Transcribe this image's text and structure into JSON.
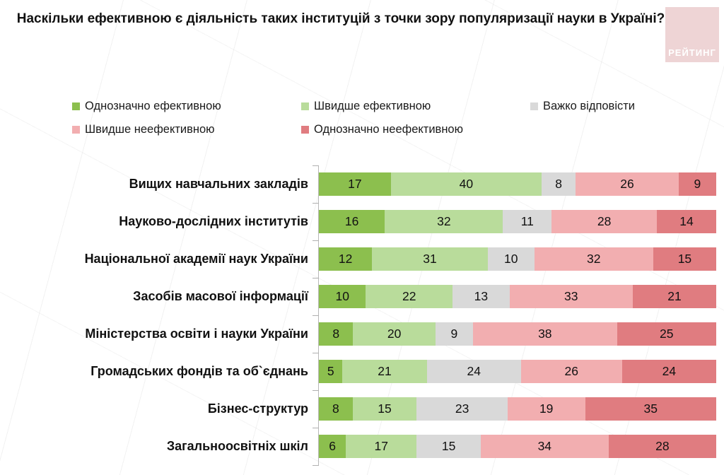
{
  "title": "Наскільки ефективною є діяльність таких інституцій з точки зору популяризації науки в Україні?",
  "logo": {
    "text": "РЕЙТИНГ",
    "bg": "#EED4D5",
    "fg": "#FFFFFF"
  },
  "chart_data": {
    "type": "bar",
    "stacked": true,
    "orientation": "horizontal",
    "unit": "%",
    "xlim": [
      0,
      100
    ],
    "grid": false,
    "legend_position": "top",
    "title": "Наскільки ефективною є діяльність таких інституцій з точки зору популяризації науки в Україні?",
    "categories": [
      "Вищих навчальних закладів",
      "Науково-дослідних інститутів",
      "Національної академії наук України",
      "Засобів масової інформації",
      "Міністерства освіти і науки України",
      "Громадських фондів та об`єднань",
      "Бізнес-структур",
      "Загальноосвітніх шкіл"
    ],
    "series": [
      {
        "name": "Однозначно ефективною",
        "color": "#8CBF4E",
        "values": [
          17,
          16,
          12,
          10,
          8,
          5,
          8,
          6
        ]
      },
      {
        "name": "Швидше ефективною",
        "color": "#B9DC9B",
        "values": [
          40,
          32,
          31,
          22,
          20,
          21,
          15,
          17
        ]
      },
      {
        "name": "Важко відповісти",
        "color": "#D9D9D9",
        "values": [
          8,
          11,
          10,
          13,
          9,
          24,
          23,
          15
        ]
      },
      {
        "name": "Швидше неефективною",
        "color": "#F2AEB0",
        "values": [
          26,
          28,
          32,
          33,
          38,
          26,
          19,
          34
        ]
      },
      {
        "name": "Однозначно неефективною",
        "color": "#E07C80",
        "values": [
          9,
          14,
          15,
          21,
          25,
          24,
          35,
          28
        ]
      }
    ]
  }
}
